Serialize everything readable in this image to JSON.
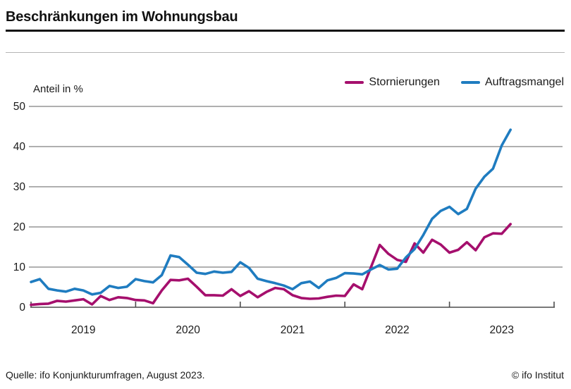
{
  "header": {
    "title": "Beschränkungen im Wohnungsbau"
  },
  "footer": {
    "source": "Quelle: ifo Konjunkturumfragen, August 2023.",
    "copyright": "© ifo Institut"
  },
  "chart_data": {
    "type": "line",
    "title": "Beschränkungen im Wohnungsbau",
    "unit_label": "Anteil in %",
    "frequency": "monthly",
    "x_start": "2019-01",
    "x_end": "2023-08",
    "x_tick_labels": [
      "2019",
      "2020",
      "2021",
      "2022",
      "2023"
    ],
    "yticks": [
      0,
      10,
      20,
      30,
      40,
      50
    ],
    "ylim": [
      0,
      50
    ],
    "grid": true,
    "legend_position": "top-right",
    "grid_color": "#808080",
    "axis_color": "#4d4d4d",
    "text_color": "#1a1a1a",
    "series": [
      {
        "name": "Stornierungen",
        "color": "#a50f6d",
        "values": [
          0.6,
          0.8,
          0.9,
          1.6,
          1.4,
          1.7,
          2.0,
          0.7,
          2.8,
          1.8,
          2.5,
          2.3,
          1.8,
          1.7,
          1.0,
          4.2,
          6.8,
          6.7,
          7.1,
          5.1,
          3.0,
          3.0,
          2.9,
          4.5,
          2.8,
          4.0,
          2.5,
          3.8,
          4.8,
          4.5,
          3.0,
          2.3,
          2.1,
          2.2,
          2.6,
          2.9,
          2.8,
          5.7,
          4.5,
          10.0,
          15.5,
          13.3,
          11.8,
          11.3,
          15.9,
          13.6,
          16.8,
          15.6,
          13.6,
          14.3,
          16.2,
          14.2,
          17.4,
          18.4,
          18.3,
          20.7
        ]
      },
      {
        "name": "Auftragsmangel",
        "color": "#1f7cc0",
        "values": [
          6.3,
          7.0,
          4.6,
          4.2,
          3.9,
          4.6,
          4.2,
          3.2,
          3.6,
          5.3,
          4.8,
          5.1,
          7.0,
          6.5,
          6.2,
          8.0,
          12.9,
          12.5,
          10.6,
          8.6,
          8.3,
          8.9,
          8.6,
          8.8,
          11.2,
          9.8,
          7.1,
          6.5,
          6.0,
          5.4,
          4.5,
          6.0,
          6.4,
          4.8,
          6.7,
          7.3,
          8.5,
          8.4,
          8.2,
          9.4,
          10.5,
          9.4,
          9.6,
          12.4,
          14.5,
          18.0,
          22.0,
          24.0,
          25.0,
          23.2,
          24.5,
          29.5,
          32.5,
          34.5,
          40.3,
          44.2
        ]
      }
    ]
  }
}
